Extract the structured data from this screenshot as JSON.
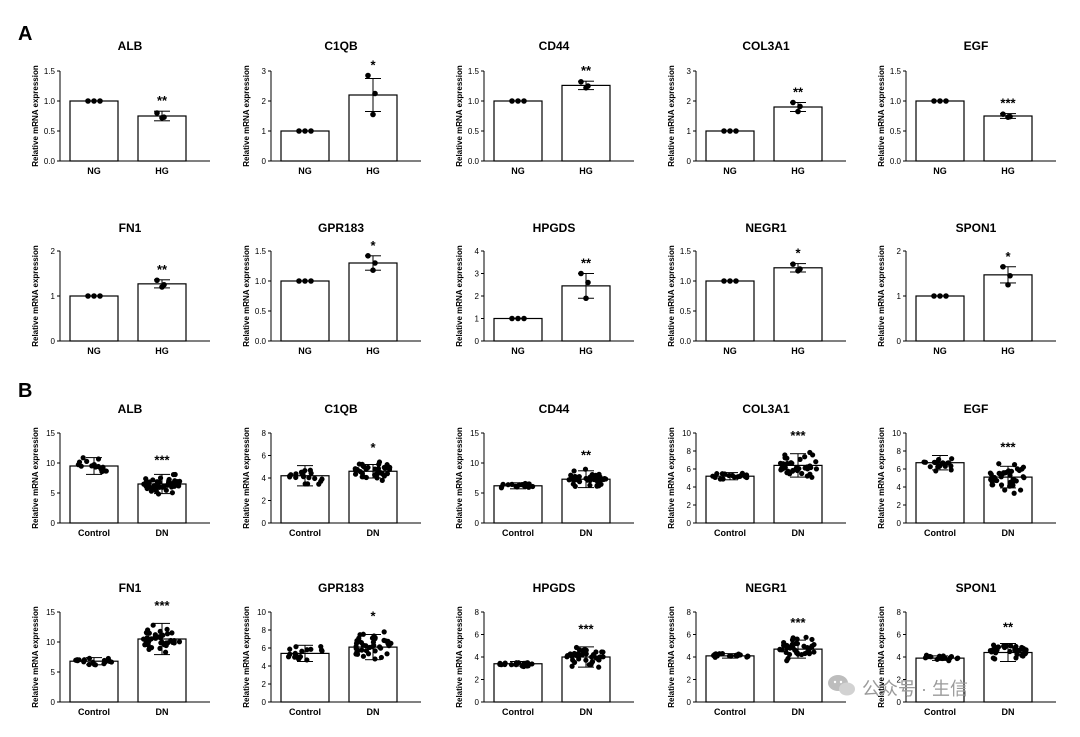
{
  "panels": [
    {
      "label": "A",
      "ylabel": "Relative mRNA expression",
      "categories": [
        "NG",
        "HG"
      ],
      "chart_data": [
        {
          "type": "bar",
          "title": "ALB",
          "ylim": [
            0,
            1.5
          ],
          "ticks": [
            "0.0",
            "0.5",
            "1.0",
            "1.5"
          ],
          "values": [
            1.0,
            0.75
          ],
          "error": [
            0,
            0.08
          ],
          "points": [
            [
              1,
              1,
              1
            ],
            [
              0.8,
              0.73,
              0.72
            ]
          ],
          "sig": "**"
        },
        {
          "type": "bar",
          "title": "C1QB",
          "ylim": [
            0,
            3
          ],
          "ticks": [
            "0",
            "1",
            "2",
            "3"
          ],
          "values": [
            1.0,
            2.2
          ],
          "error": [
            0,
            0.55
          ],
          "points": [
            [
              1,
              1,
              1
            ],
            [
              2.85,
              2.25,
              1.55
            ]
          ],
          "sig": "*"
        },
        {
          "type": "bar",
          "title": "CD44",
          "ylim": [
            0,
            1.5
          ],
          "ticks": [
            "0.0",
            "0.5",
            "1.0",
            "1.5"
          ],
          "values": [
            1.0,
            1.26
          ],
          "error": [
            0,
            0.07
          ],
          "points": [
            [
              1,
              1,
              1
            ],
            [
              1.32,
              1.25,
              1.22
            ]
          ],
          "sig": "**"
        },
        {
          "type": "bar",
          "title": "COL3A1",
          "ylim": [
            0,
            3
          ],
          "ticks": [
            "0",
            "1",
            "2",
            "3"
          ],
          "values": [
            1.0,
            1.8
          ],
          "error": [
            0,
            0.15
          ],
          "points": [
            [
              1,
              1,
              1
            ],
            [
              1.95,
              1.82,
              1.65
            ]
          ],
          "sig": "**"
        },
        {
          "type": "bar",
          "title": "EGF",
          "ylim": [
            0,
            1.5
          ],
          "ticks": [
            "0.0",
            "0.5",
            "1.0",
            "1.5"
          ],
          "values": [
            1.0,
            0.75
          ],
          "error": [
            0,
            0.04
          ],
          "points": [
            [
              1,
              1,
              1
            ],
            [
              0.78,
              0.74,
              0.73
            ]
          ],
          "sig": "***"
        },
        {
          "type": "bar",
          "title": "FN1",
          "ylim": [
            0,
            2
          ],
          "ticks": [
            "0",
            "1",
            "2"
          ],
          "values": [
            1.0,
            1.27
          ],
          "error": [
            0,
            0.09
          ],
          "points": [
            [
              1,
              1,
              1
            ],
            [
              1.35,
              1.25,
              1.2
            ]
          ],
          "sig": "**"
        },
        {
          "type": "bar",
          "title": "GPR183",
          "ylim": [
            0,
            1.5
          ],
          "ticks": [
            "0.0",
            "0.5",
            "1.0",
            "1.5"
          ],
          "values": [
            1.0,
            1.3
          ],
          "error": [
            0,
            0.12
          ],
          "points": [
            [
              1,
              1,
              1
            ],
            [
              1.42,
              1.3,
              1.18
            ]
          ],
          "sig": "*"
        },
        {
          "type": "bar",
          "title": "HPGDS",
          "ylim": [
            0,
            4
          ],
          "ticks": [
            "0",
            "1",
            "2",
            "3",
            "4"
          ],
          "values": [
            1.0,
            2.45
          ],
          "error": [
            0,
            0.55
          ],
          "points": [
            [
              1,
              1,
              1
            ],
            [
              3.0,
              2.6,
              1.9
            ]
          ],
          "sig": "**"
        },
        {
          "type": "bar",
          "title": "NEGR1",
          "ylim": [
            0,
            1.5
          ],
          "ticks": [
            "0.0",
            "0.5",
            "1.0",
            "1.5"
          ],
          "values": [
            1.0,
            1.22
          ],
          "error": [
            0,
            0.07
          ],
          "points": [
            [
              1,
              1,
              1
            ],
            [
              1.28,
              1.2,
              1.17
            ]
          ],
          "sig": "*"
        },
        {
          "type": "bar",
          "title": "SPON1",
          "ylim": [
            0,
            2
          ],
          "ticks": [
            "0",
            "1",
            "2"
          ],
          "values": [
            1.0,
            1.47
          ],
          "error": [
            0,
            0.18
          ],
          "points": [
            [
              1,
              1,
              1
            ],
            [
              1.65,
              1.45,
              1.25
            ]
          ],
          "sig": "*"
        }
      ]
    },
    {
      "label": "B",
      "ylabel": "Relative mRNA expression",
      "categories": [
        "Control",
        "DN"
      ],
      "chart_data": [
        {
          "type": "bar",
          "title": "ALB",
          "ylim": [
            0,
            15
          ],
          "ticks": [
            "0",
            "5",
            "10",
            "15"
          ],
          "values": [
            9.5,
            6.5
          ],
          "error": [
            1.4,
            1.6
          ],
          "spread": [
            1.8,
            1.9
          ],
          "n": [
            18,
            40
          ],
          "sig": "***"
        },
        {
          "type": "bar",
          "title": "C1QB",
          "ylim": [
            0,
            8
          ],
          "ticks": [
            "0",
            "2",
            "4",
            "6",
            "8"
          ],
          "values": [
            4.2,
            4.6
          ],
          "error": [
            0.9,
            0.6
          ],
          "spread": [
            0.9,
            1.0
          ],
          "n": [
            18,
            40
          ],
          "sig": "*"
        },
        {
          "type": "bar",
          "title": "CD44",
          "ylim": [
            0,
            15
          ],
          "ticks": [
            "0",
            "5",
            "10",
            "15"
          ],
          "values": [
            6.2,
            7.3
          ],
          "error": [
            0.5,
            1.4
          ],
          "spread": [
            0.7,
            1.9
          ],
          "n": [
            18,
            40
          ],
          "sig": "**"
        },
        {
          "type": "bar",
          "title": "COL3A1",
          "ylim": [
            0,
            10
          ],
          "ticks": [
            "0",
            "2",
            "4",
            "6",
            "8",
            "10"
          ],
          "values": [
            5.2,
            6.4
          ],
          "error": [
            0.4,
            1.3
          ],
          "spread": [
            0.6,
            1.8
          ],
          "n": [
            18,
            40
          ],
          "sig": "***"
        },
        {
          "type": "bar",
          "title": "EGF",
          "ylim": [
            0,
            10
          ],
          "ticks": [
            "0",
            "2",
            "4",
            "6",
            "8",
            "10"
          ],
          "values": [
            6.7,
            5.1
          ],
          "error": [
            0.8,
            1.2
          ],
          "spread": [
            1.1,
            1.8
          ],
          "n": [
            18,
            40
          ],
          "sig": "***"
        },
        {
          "type": "bar",
          "title": "FN1",
          "ylim": [
            0,
            15
          ],
          "ticks": [
            "0",
            "5",
            "10",
            "15"
          ],
          "values": [
            6.8,
            10.5
          ],
          "error": [
            0.6,
            2.6
          ],
          "spread": [
            0.9,
            3.2
          ],
          "n": [
            18,
            40
          ],
          "sig": "***"
        },
        {
          "type": "bar",
          "title": "GPR183",
          "ylim": [
            0,
            10
          ],
          "ticks": [
            "0",
            "2",
            "4",
            "6",
            "8",
            "10"
          ],
          "values": [
            5.4,
            6.1
          ],
          "error": [
            0.9,
            1.4
          ],
          "spread": [
            1.4,
            1.9
          ],
          "n": [
            18,
            40
          ],
          "sig": "*"
        },
        {
          "type": "bar",
          "title": "HPGDS",
          "ylim": [
            0,
            8
          ],
          "ticks": [
            "0",
            "2",
            "4",
            "6",
            "8"
          ],
          "values": [
            3.4,
            4.0
          ],
          "error": [
            0.2,
            0.9
          ],
          "spread": [
            0.3,
            1.3
          ],
          "n": [
            18,
            40
          ],
          "sig": "***"
        },
        {
          "type": "bar",
          "title": "NEGR1",
          "ylim": [
            0,
            8
          ],
          "ticks": [
            "0",
            "2",
            "4",
            "6",
            "8"
          ],
          "values": [
            4.1,
            4.7
          ],
          "error": [
            0.2,
            0.8
          ],
          "spread": [
            0.3,
            1.2
          ],
          "n": [
            18,
            40
          ],
          "sig": "***"
        },
        {
          "type": "bar",
          "title": "SPON1",
          "ylim": [
            0,
            8
          ],
          "ticks": [
            "0",
            "2",
            "4",
            "6",
            "8"
          ],
          "values": [
            3.9,
            4.4
          ],
          "error": [
            0.2,
            0.8
          ],
          "spread": [
            0.3,
            1.1
          ],
          "n": [
            18,
            40
          ],
          "sig": "**"
        }
      ]
    }
  ],
  "watermark": "公众号 · 生信"
}
